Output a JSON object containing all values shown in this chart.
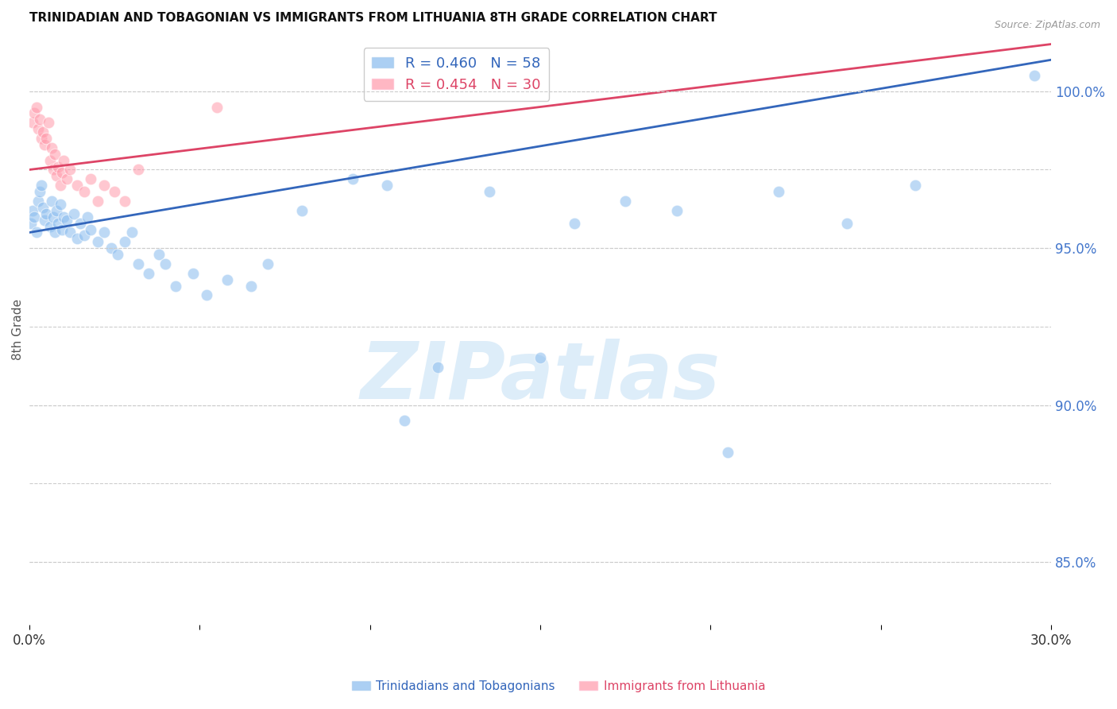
{
  "title": "TRINIDADIAN AND TOBAGONIAN VS IMMIGRANTS FROM LITHUANIA 8TH GRADE CORRELATION CHART",
  "source": "Source: ZipAtlas.com",
  "ylabel_left": "8th Grade",
  "right_yticks": [
    85.0,
    90.0,
    95.0,
    100.0
  ],
  "legend1_label": "R = 0.460   N = 58",
  "legend2_label": "R = 0.454   N = 30",
  "blue_color": "#88BBEE",
  "pink_color": "#FF99AA",
  "blue_line_color": "#3366BB",
  "pink_line_color": "#DD4466",
  "xmin": 0.0,
  "xmax": 30.0,
  "ymin": 83.0,
  "ymax": 101.8,
  "blue_x": [
    0.05,
    0.1,
    0.15,
    0.2,
    0.25,
    0.3,
    0.35,
    0.4,
    0.45,
    0.5,
    0.6,
    0.65,
    0.7,
    0.75,
    0.8,
    0.85,
    0.9,
    0.95,
    1.0,
    1.1,
    1.2,
    1.3,
    1.4,
    1.5,
    1.6,
    1.7,
    1.8,
    2.0,
    2.2,
    2.4,
    2.6,
    2.8,
    3.0,
    3.2,
    3.5,
    3.8,
    4.0,
    4.3,
    4.8,
    5.2,
    5.8,
    6.5,
    7.0,
    8.0,
    9.5,
    10.5,
    11.0,
    12.0,
    13.5,
    15.0,
    16.0,
    17.5,
    19.0,
    20.5,
    22.0,
    24.0,
    26.0,
    29.5
  ],
  "blue_y": [
    95.8,
    96.2,
    96.0,
    95.5,
    96.5,
    96.8,
    97.0,
    96.3,
    95.9,
    96.1,
    95.7,
    96.5,
    96.0,
    95.5,
    96.2,
    95.8,
    96.4,
    95.6,
    96.0,
    95.9,
    95.5,
    96.1,
    95.3,
    95.8,
    95.4,
    96.0,
    95.6,
    95.2,
    95.5,
    95.0,
    94.8,
    95.2,
    95.5,
    94.5,
    94.2,
    94.8,
    94.5,
    93.8,
    94.2,
    93.5,
    94.0,
    93.8,
    94.5,
    96.2,
    97.2,
    97.0,
    89.5,
    91.2,
    96.8,
    91.5,
    95.8,
    96.5,
    96.2,
    88.5,
    96.8,
    95.8,
    97.0,
    100.5
  ],
  "pink_x": [
    0.1,
    0.15,
    0.2,
    0.25,
    0.3,
    0.35,
    0.4,
    0.45,
    0.5,
    0.55,
    0.6,
    0.65,
    0.7,
    0.75,
    0.8,
    0.85,
    0.9,
    0.95,
    1.0,
    1.1,
    1.2,
    1.4,
    1.6,
    1.8,
    2.0,
    2.2,
    2.5,
    2.8,
    3.2,
    5.5
  ],
  "pink_y": [
    99.0,
    99.3,
    99.5,
    98.8,
    99.1,
    98.5,
    98.7,
    98.3,
    98.5,
    99.0,
    97.8,
    98.2,
    97.5,
    98.0,
    97.3,
    97.6,
    97.0,
    97.4,
    97.8,
    97.2,
    97.5,
    97.0,
    96.8,
    97.2,
    96.5,
    97.0,
    96.8,
    96.5,
    97.5,
    99.5
  ],
  "blue_trend_x0": 0.0,
  "blue_trend_y0": 95.5,
  "blue_trend_x1": 30.0,
  "blue_trend_y1": 101.0,
  "pink_trend_x0": 0.0,
  "pink_trend_y0": 97.5,
  "pink_trend_x1": 30.0,
  "pink_trend_y1": 101.5,
  "watermark_text": "ZIPatlas",
  "background_color": "#FFFFFF"
}
